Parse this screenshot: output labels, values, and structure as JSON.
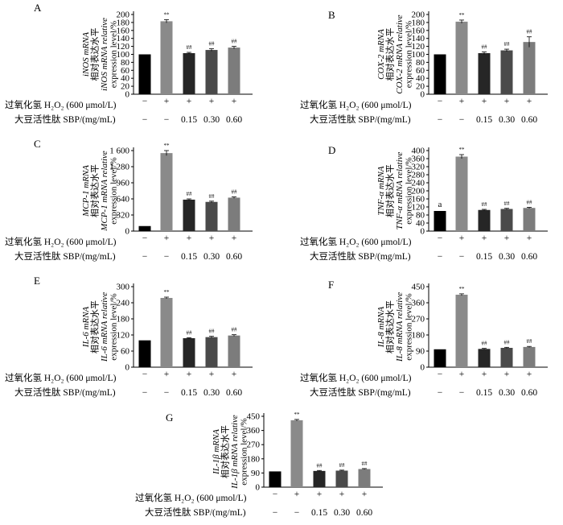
{
  "condition_labels": {
    "h2o2": "过氧化氢 H₂O₂ (600 μmol/L)",
    "sbp": "大豆活性肽 SBP/(mg/mL)"
  },
  "chart_data": [
    {
      "type": "bar",
      "panel": "A",
      "ylabel": [
        "iNOS mRNA",
        "相对表达水平",
        "iNOS mRNA relative",
        "expression level/%"
      ],
      "yticks": [
        "0",
        "20",
        "40",
        "60",
        "80",
        "100",
        "120",
        "140",
        "160",
        "180",
        "200"
      ],
      "ylim": [
        0,
        200
      ],
      "values": [
        100,
        183,
        103,
        111,
        117
      ],
      "errors": [
        0,
        4,
        2,
        3,
        3
      ],
      "marks": [
        "",
        "**",
        "##",
        "##",
        "##"
      ],
      "colors": [
        "#000000",
        "#8a8a8a",
        "#262626",
        "#4a4a4a",
        "#7c7c7c"
      ],
      "h2o2_row": [
        "−",
        "+",
        "+",
        "+",
        "+"
      ],
      "sbp_row": [
        "−",
        "−",
        "0.15",
        "0.30",
        "0.60"
      ]
    },
    {
      "type": "bar",
      "panel": "B",
      "ylabel": [
        "COX-2 mRNA",
        "相对表达水平",
        "COX-2 mRNA relative",
        "expression level/%"
      ],
      "yticks": [
        "0",
        "20",
        "40",
        "60",
        "80",
        "100",
        "120",
        "140",
        "160",
        "180",
        "200"
      ],
      "ylim": [
        0,
        200
      ],
      "values": [
        100,
        182,
        103,
        110,
        131
      ],
      "errors": [
        0,
        4,
        3,
        3,
        13
      ],
      "marks": [
        "",
        "**",
        "##",
        "##",
        "##"
      ],
      "colors": [
        "#000000",
        "#8a8a8a",
        "#262626",
        "#4a4a4a",
        "#7c7c7c"
      ],
      "h2o2_row": [
        "−",
        "+",
        "+",
        "+",
        "+"
      ],
      "sbp_row": [
        "−",
        "−",
        "0.15",
        "0.30",
        "0.60"
      ]
    },
    {
      "type": "bar",
      "panel": "C",
      "ylabel": [
        "MCP-1 mRNA",
        "相对表达水平",
        "MCP-1 mRNA relative",
        "expression level/%"
      ],
      "yticks": [
        "0",
        "320",
        "640",
        "960",
        "1 280",
        "1 600"
      ],
      "ylim": [
        0,
        1600
      ],
      "values": [
        100,
        1550,
        625,
        580,
        665
      ],
      "errors": [
        0,
        50,
        15,
        15,
        15
      ],
      "marks": [
        "",
        "**",
        "##",
        "##",
        "##"
      ],
      "colors": [
        "#000000",
        "#8a8a8a",
        "#262626",
        "#4a4a4a",
        "#7c7c7c"
      ],
      "h2o2_row": [
        "−",
        "+",
        "+",
        "+",
        "+"
      ],
      "sbp_row": [
        "−",
        "−",
        "0.15",
        "0.30",
        "0.60"
      ]
    },
    {
      "type": "bar",
      "panel": "D",
      "ylabel": [
        "TNF-α mRNA",
        "相对表达水平",
        "TNF-α mRNA relative",
        "expression level/%"
      ],
      "yticks": [
        "0",
        "40",
        "80",
        "120",
        "160",
        "200",
        "240",
        "280",
        "320",
        "360",
        "400"
      ],
      "ylim": [
        0,
        400
      ],
      "values": [
        100,
        370,
        105,
        110,
        115
      ],
      "errors": [
        0,
        10,
        3,
        3,
        3
      ],
      "marks": [
        "a",
        "**",
        "##",
        "##",
        "##"
      ],
      "colors": [
        "#000000",
        "#8a8a8a",
        "#262626",
        "#4a4a4a",
        "#7c7c7c"
      ],
      "h2o2_row": [
        "−",
        "+",
        "+",
        "+",
        "+"
      ],
      "sbp_row": [
        "−",
        "−",
        "0.15",
        "0.30",
        "0.60"
      ]
    },
    {
      "type": "bar",
      "panel": "E",
      "ylabel": [
        "IL-6 mRNA",
        "相对表达水平",
        "IL-6 mRNA relative",
        "expression level/%"
      ],
      "yticks": [
        "0",
        "60",
        "120",
        "180",
        "240",
        "300"
      ],
      "ylim": [
        0,
        300
      ],
      "values": [
        100,
        258,
        108,
        112,
        118
      ],
      "errors": [
        0,
        3,
        2,
        3,
        3
      ],
      "marks": [
        "",
        "**",
        "##",
        "##",
        "##"
      ],
      "colors": [
        "#000000",
        "#8a8a8a",
        "#262626",
        "#4a4a4a",
        "#7c7c7c"
      ],
      "h2o2_row": [
        "−",
        "+",
        "+",
        "+",
        "+"
      ],
      "sbp_row": [
        "−",
        "−",
        "0.15",
        "0.30",
        "0.60"
      ]
    },
    {
      "type": "bar",
      "panel": "F",
      "ylabel": [
        "IL-8 mRNA",
        "相对表达水平",
        "IL-8 mRNA relative",
        "expression level/%"
      ],
      "yticks": [
        "0",
        "90",
        "180",
        "270",
        "360",
        "450"
      ],
      "ylim": [
        0,
        450
      ],
      "values": [
        100,
        405,
        102,
        108,
        113
      ],
      "errors": [
        0,
        5,
        3,
        3,
        3
      ],
      "marks": [
        "",
        "**",
        "##",
        "##",
        "##"
      ],
      "colors": [
        "#000000",
        "#8a8a8a",
        "#262626",
        "#4a4a4a",
        "#7c7c7c"
      ],
      "h2o2_row": [
        "−",
        "+",
        "+",
        "+",
        "+"
      ],
      "sbp_row": [
        "−",
        "−",
        "0.15",
        "0.30",
        "0.60"
      ]
    },
    {
      "type": "bar",
      "panel": "G",
      "ylabel": [
        "IL-1β mRNA",
        "相对表达水平",
        "IL-1β mRNA relative",
        "expression level/%"
      ],
      "yticks": [
        "0",
        "90",
        "180",
        "270",
        "360",
        "450"
      ],
      "ylim": [
        0,
        450
      ],
      "values": [
        100,
        425,
        103,
        105,
        115
      ],
      "errors": [
        0,
        5,
        3,
        3,
        3
      ],
      "marks": [
        "",
        "**",
        "##",
        "##",
        "##"
      ],
      "colors": [
        "#000000",
        "#8a8a8a",
        "#262626",
        "#4a4a4a",
        "#7c7c7c"
      ],
      "h2o2_row": [
        "−",
        "+",
        "+",
        "+",
        "+"
      ],
      "sbp_row": [
        "−",
        "−",
        "0.15",
        "0.30",
        "0.60"
      ]
    }
  ]
}
